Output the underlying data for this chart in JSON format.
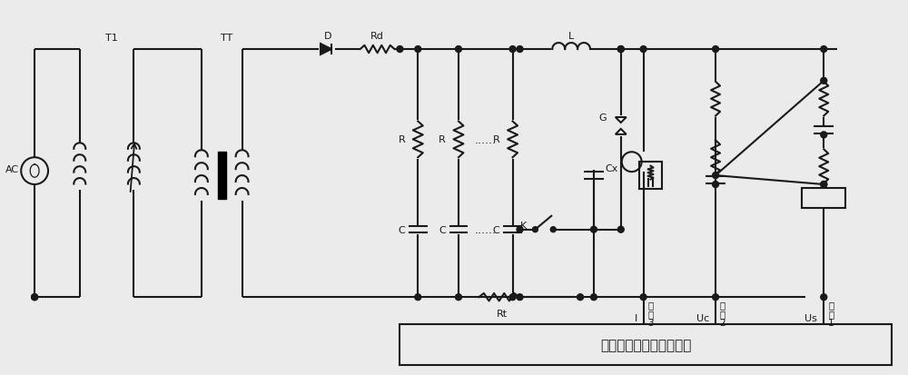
{
  "title": "电容器耐爆能量检测装置",
  "bg_color": "#ebebeb",
  "line_color": "#1a1a1a",
  "lw": 1.5,
  "fig_width": 10.0,
  "fig_height": 4.14,
  "dpi": 100,
  "labels": {
    "AC": "AC",
    "T1": "T1",
    "TT": "TT",
    "D": "D",
    "Rd": "Rd",
    "L": "L",
    "R": "R",
    "C": "C",
    "K": "K",
    "Cx": "Cx",
    "G": "G",
    "Rt": "Rt",
    "I": "I",
    "Uc": "Uc",
    "Us": "Us",
    "box": "电容器耐爆能量检测装置"
  }
}
